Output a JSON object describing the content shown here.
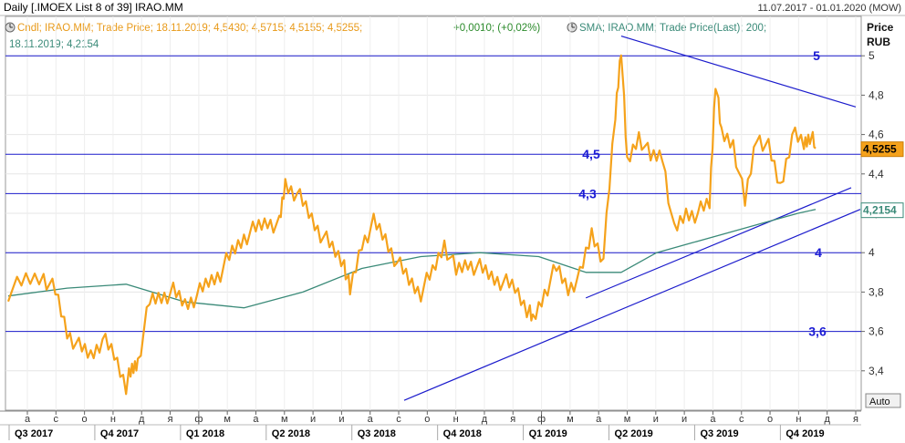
{
  "header": {
    "title": "Daily [.IMOEX List 8 of 39] IRAO.MM",
    "date_range": "11.07.2017 - 01.01.2020 (MOW)"
  },
  "legend": {
    "line1_part1": "Cndl; IRAO.MM; Trade Price;  18.11.2019; 4,5430; 4,5715; 4,5155; 4,5255;",
    "line1_part2": "+0,0010; (+0,02%)",
    "line1_part3": "SMA; IRAO.MM; Trade Price(Last);  200;",
    "line2": "18.11.2019; 4,2154"
  },
  "axis": {
    "price_label": "Price",
    "currency_label": "RUB",
    "auto_button": "Auto"
  },
  "colors": {
    "price_line": "#f5a21b",
    "sma_line": "#3a8a78",
    "trend_lines": "#1b1bcc",
    "background": "#ffffff"
  },
  "chart_data": {
    "type": "line",
    "title": "Daily [.IMOEX List 8 of 39] IRAO.MM",
    "ylabel": "Price RUB",
    "ylim": [
      3.2,
      5.2
    ],
    "y_ticks": [
      "3,4",
      "3,6",
      "3,8",
      "4",
      "4,2",
      "4,4",
      "4,6",
      "4,8",
      "5"
    ],
    "x_ticks": [
      "а",
      "с",
      "о",
      "н",
      "д",
      "я",
      "ф",
      "м",
      "а",
      "м",
      "и",
      "и",
      "а",
      "с",
      "о",
      "н",
      "д",
      "я",
      "ф",
      "м",
      "а",
      "м",
      "и",
      "и",
      "а",
      "с",
      "о",
      "н",
      "д",
      "я"
    ],
    "quarter_labels": [
      "Q3 2017",
      "Q4 2017",
      "Q1 2018",
      "Q2 2018",
      "Q3 2018",
      "Q4 2018",
      "Q1 2019",
      "Q2 2019",
      "Q3 2019",
      "Q4 2019"
    ],
    "series": [
      {
        "name": "Cndl; IRAO.MM; Trade Price",
        "points": [
          [
            0,
            3.8
          ],
          [
            3,
            3.86
          ],
          [
            6,
            3.88
          ],
          [
            8,
            3.8
          ],
          [
            10,
            3.6
          ],
          [
            12,
            3.52
          ],
          [
            14,
            3.48
          ],
          [
            16,
            3.56
          ],
          [
            18,
            3.48
          ],
          [
            20,
            3.33
          ],
          [
            21,
            3.4
          ],
          [
            22,
            3.45
          ],
          [
            24,
            3.75
          ],
          [
            26,
            3.78
          ],
          [
            28,
            3.8
          ],
          [
            30,
            3.74
          ],
          [
            32,
            3.78
          ],
          [
            34,
            3.85
          ],
          [
            36,
            3.9
          ],
          [
            38,
            4.0
          ],
          [
            40,
            4.08
          ],
          [
            42,
            4.12
          ],
          [
            44,
            4.16
          ],
          [
            46,
            4.14
          ],
          [
            47,
            4.35
          ],
          [
            49,
            4.3
          ],
          [
            51,
            4.2
          ],
          [
            53,
            4.1
          ],
          [
            55,
            4.02
          ],
          [
            57,
            3.95
          ],
          [
            58,
            3.8
          ],
          [
            60,
            4.05
          ],
          [
            62,
            4.15
          ],
          [
            64,
            4.07
          ],
          [
            66,
            3.95
          ],
          [
            68,
            3.86
          ],
          [
            70,
            3.8
          ],
          [
            72,
            3.9
          ],
          [
            74,
            4.05
          ],
          [
            76,
            3.9
          ],
          [
            78,
            3.95
          ],
          [
            80,
            3.92
          ],
          [
            82,
            3.88
          ],
          [
            84,
            3.85
          ],
          [
            86,
            3.82
          ],
          [
            88,
            3.72
          ],
          [
            89,
            3.65
          ],
          [
            91,
            3.8
          ],
          [
            93,
            3.92
          ],
          [
            95,
            3.82
          ],
          [
            97,
            3.88
          ],
          [
            99,
            4.1
          ],
          [
            101,
            3.97
          ],
          [
            103,
            4.7
          ],
          [
            104,
            5.05
          ],
          [
            105,
            4.45
          ],
          [
            107,
            4.6
          ],
          [
            109,
            4.48
          ],
          [
            111,
            4.5
          ],
          [
            113,
            4.1
          ],
          [
            115,
            4.2
          ],
          [
            117,
            4.2
          ],
          [
            119,
            4.25
          ],
          [
            120,
            4.88
          ],
          [
            121,
            4.6
          ],
          [
            123,
            4.56
          ],
          [
            125,
            4.25
          ],
          [
            127,
            4.6
          ],
          [
            129,
            4.53
          ],
          [
            131,
            4.33
          ],
          [
            133,
            4.6
          ],
          [
            135,
            4.55
          ],
          [
            136,
            4.6
          ],
          [
            137,
            4.53
          ]
        ]
      },
      {
        "name": "SMA; IRAO.MM; Trade Price(Last); 200",
        "points": [
          [
            0,
            3.78
          ],
          [
            10,
            3.82
          ],
          [
            20,
            3.84
          ],
          [
            30,
            3.75
          ],
          [
            40,
            3.72
          ],
          [
            50,
            3.8
          ],
          [
            60,
            3.92
          ],
          [
            70,
            3.98
          ],
          [
            80,
            4.0
          ],
          [
            90,
            3.98
          ],
          [
            98,
            3.9
          ],
          [
            104,
            3.9
          ],
          [
            110,
            4.0
          ],
          [
            116,
            4.05
          ],
          [
            122,
            4.1
          ],
          [
            128,
            4.15
          ],
          [
            134,
            4.2
          ],
          [
            137,
            4.22
          ]
        ]
      }
    ],
    "horizontal_levels": [
      "5",
      "4,5",
      "4,3",
      "4",
      "3,6"
    ],
    "last_price": "4,5255",
    "last_sma": "4,2154"
  }
}
